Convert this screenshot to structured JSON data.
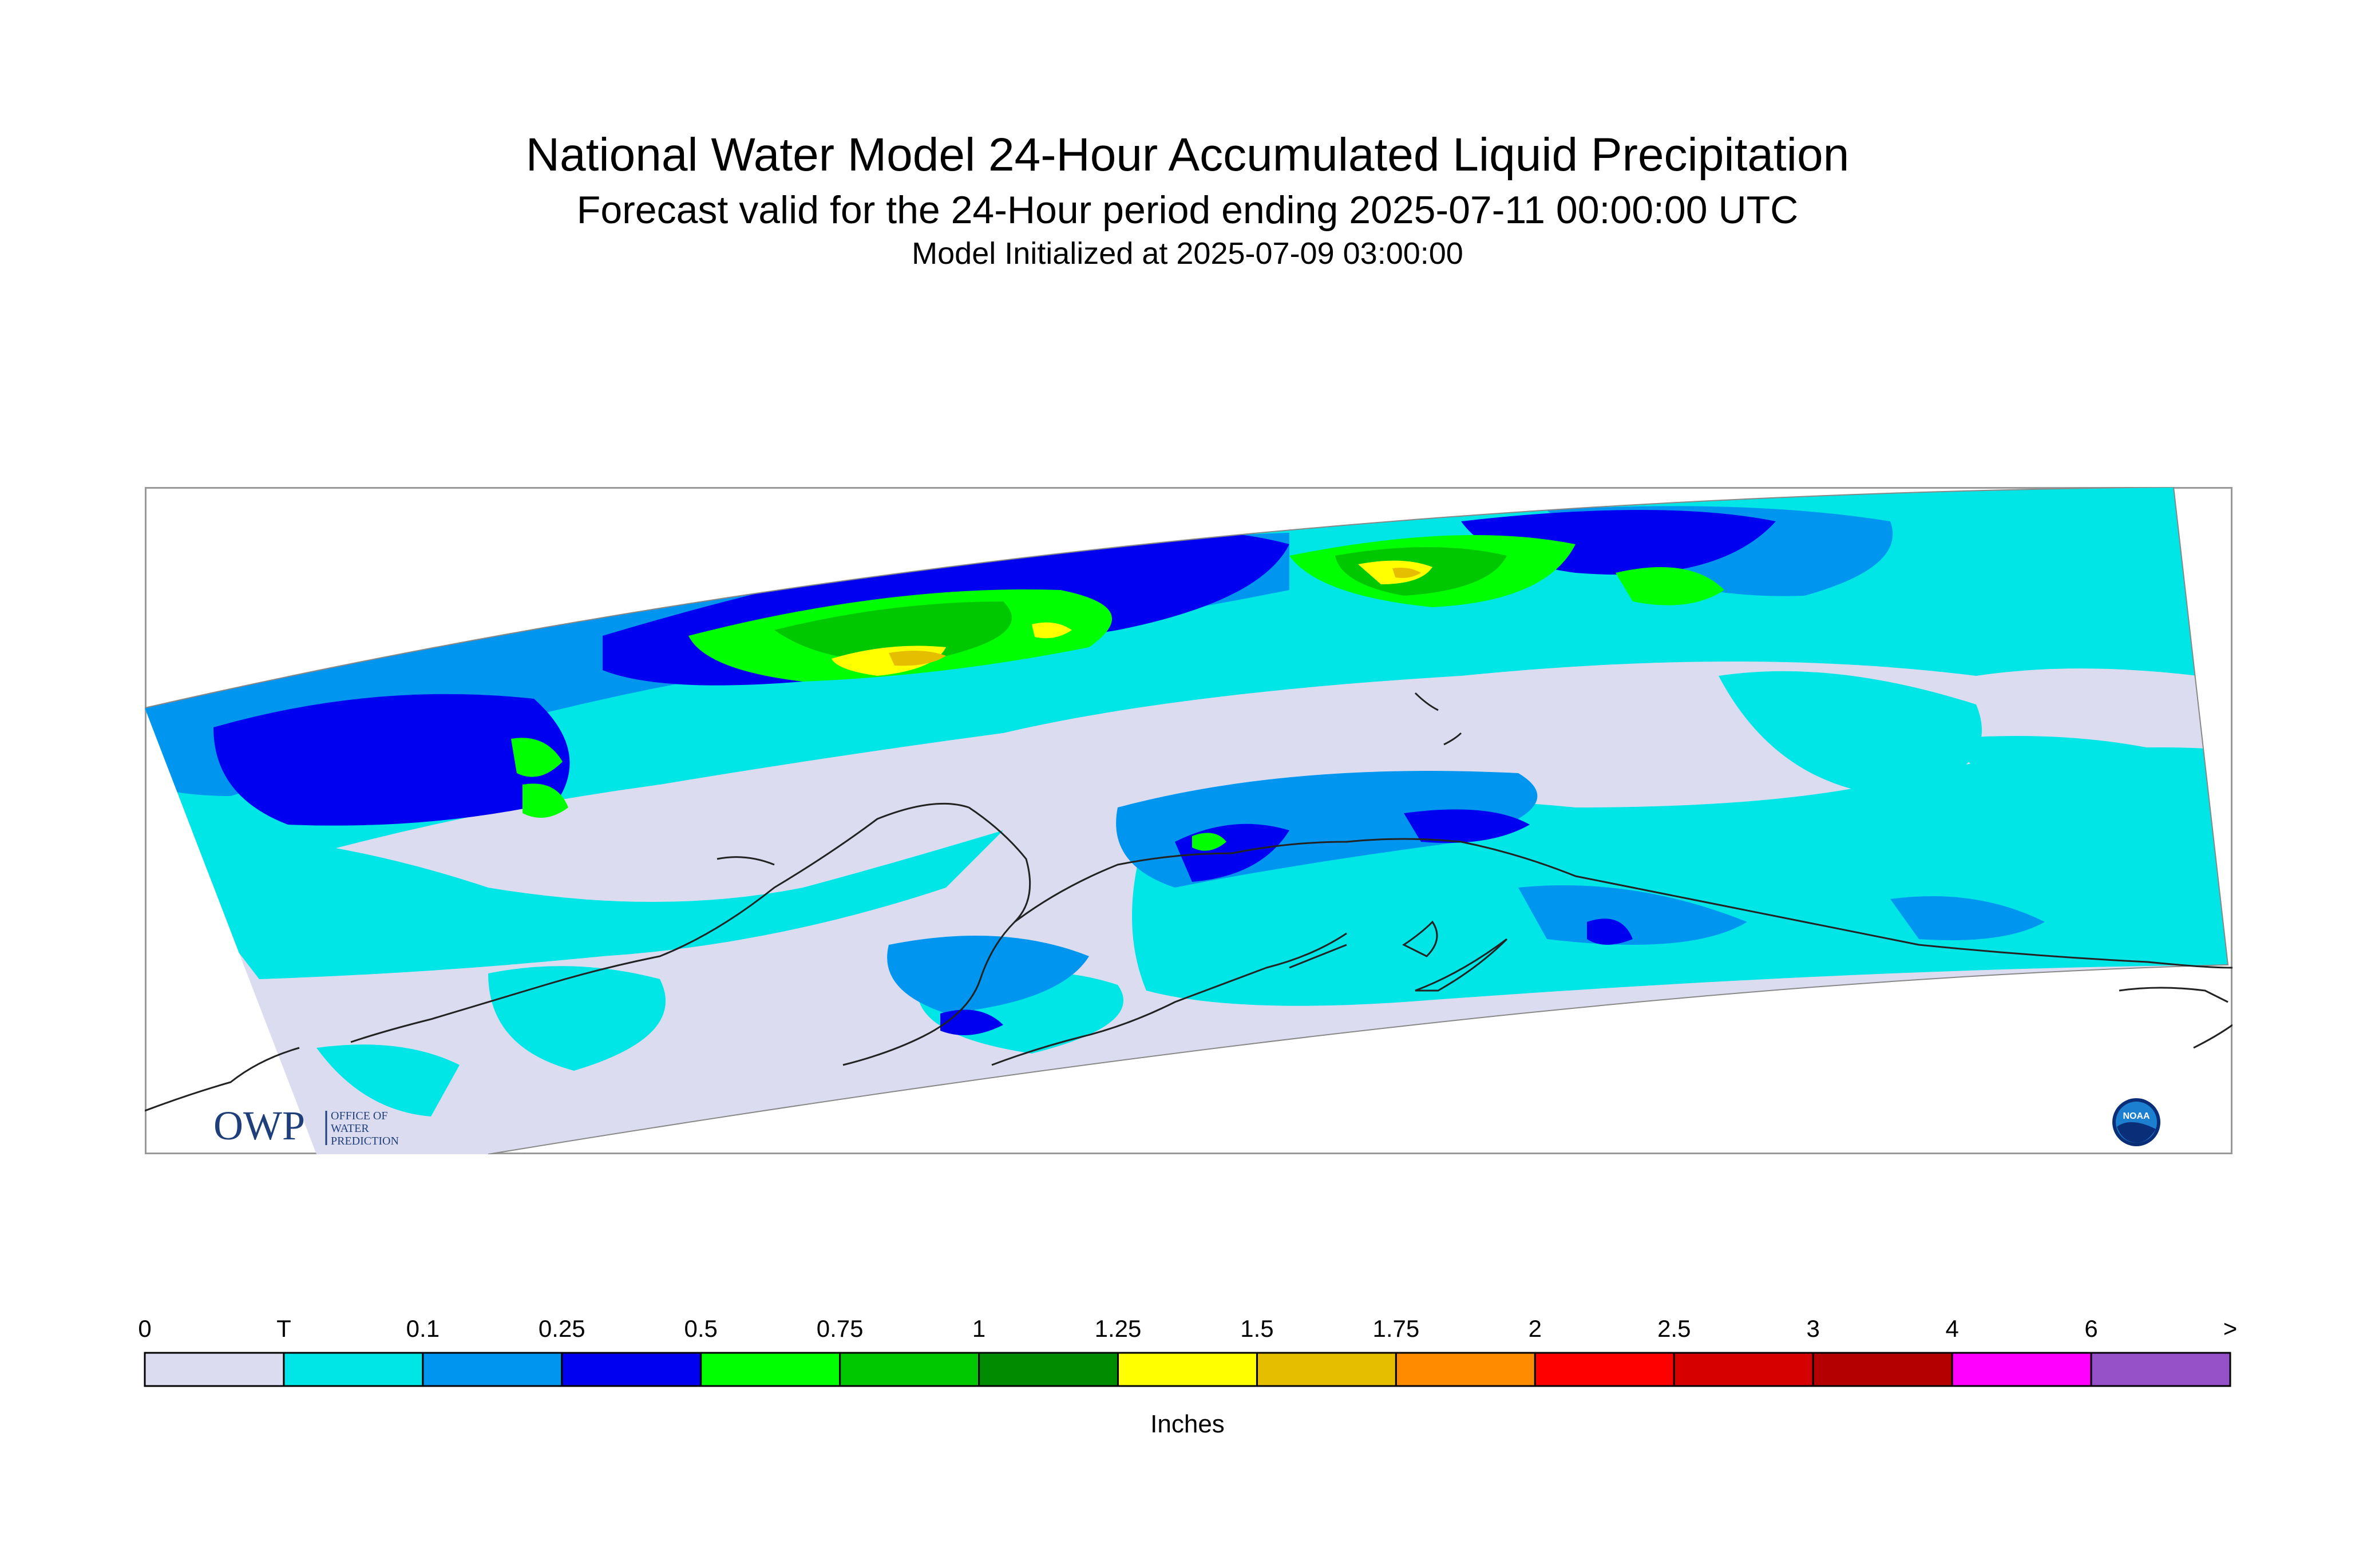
{
  "header": {
    "title": "National Water Model 24-Hour Accumulated Liquid Precipitation",
    "subtitle": "Forecast valid for the 24-Hour period ending 2025-07-11 00:00:00 UTC",
    "init": "Model Initialized at 2025-07-09 03:00:00"
  },
  "logos": {
    "owp_mark": "OWP",
    "owp_text": [
      "OFFICE OF",
      "WATER",
      "PREDICTION"
    ],
    "noaa": "NOAA"
  },
  "legend": {
    "labels": [
      "0",
      "T",
      "0.1",
      "0.25",
      "0.5",
      "0.75",
      "1",
      "1.25",
      "1.5",
      "1.75",
      "2",
      "2.5",
      "3",
      "4",
      "6",
      ">"
    ],
    "colors": [
      "#dcdcf0",
      "#00e6e6",
      "#0096f0",
      "#0000f0",
      "#00ff00",
      "#00c800",
      "#008c00",
      "#ffff00",
      "#e6be00",
      "#ff8c00",
      "#ff0000",
      "#d70000",
      "#b40000",
      "#ff00ff",
      "#9650c8"
    ],
    "units": "Inches"
  }
}
